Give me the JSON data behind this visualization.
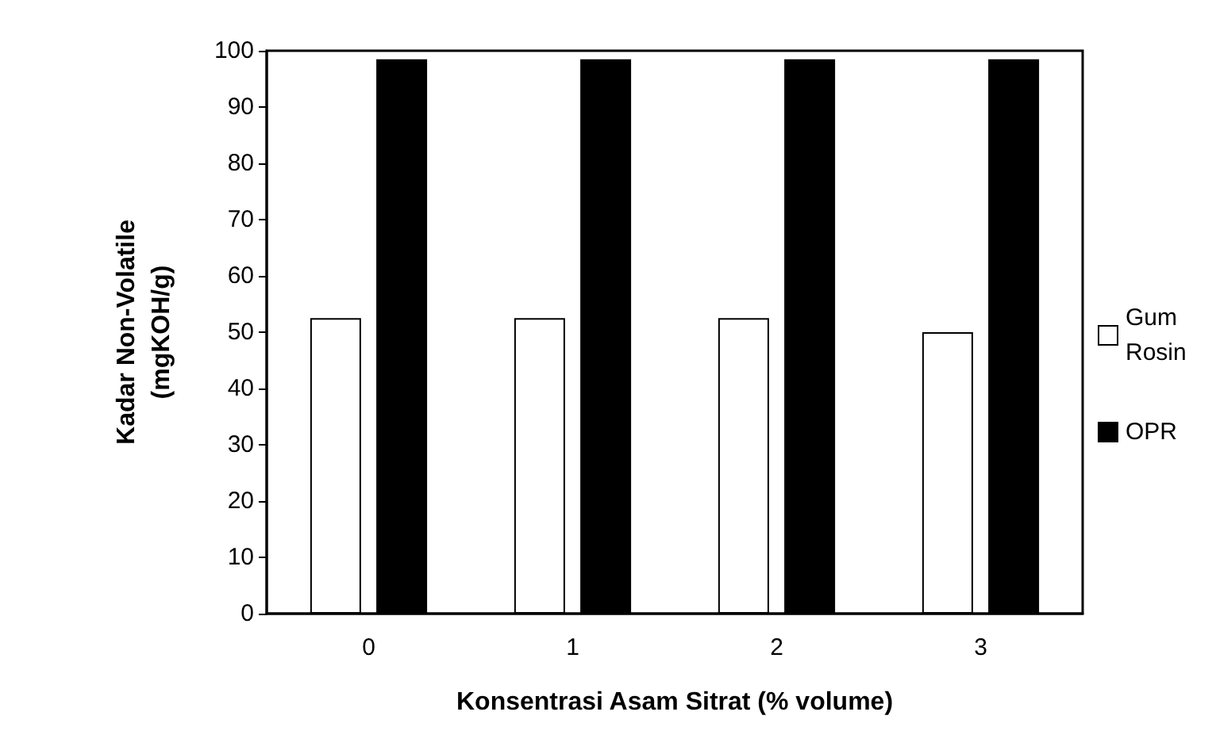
{
  "chart_data": {
    "type": "bar",
    "xlabel": "Konsentrasi Asam Sitrat (% volume)",
    "ylabel": "Kadar Non-Volatile\n(mgKOH/g)",
    "categories": [
      "0",
      "1",
      "2",
      "3"
    ],
    "series": [
      {
        "name": "Gum Rosin",
        "color": "#ffffff",
        "values": [
          52.5,
          52.5,
          52.5,
          50
        ]
      },
      {
        "name": "OPR",
        "color": "#000000",
        "values": [
          98.5,
          98.5,
          98.5,
          98.5
        ]
      }
    ],
    "ylim": [
      0,
      100
    ],
    "yticks": [
      0,
      10,
      20,
      30,
      40,
      50,
      60,
      70,
      80,
      90,
      100
    ],
    "grid": false,
    "legend": "right"
  }
}
